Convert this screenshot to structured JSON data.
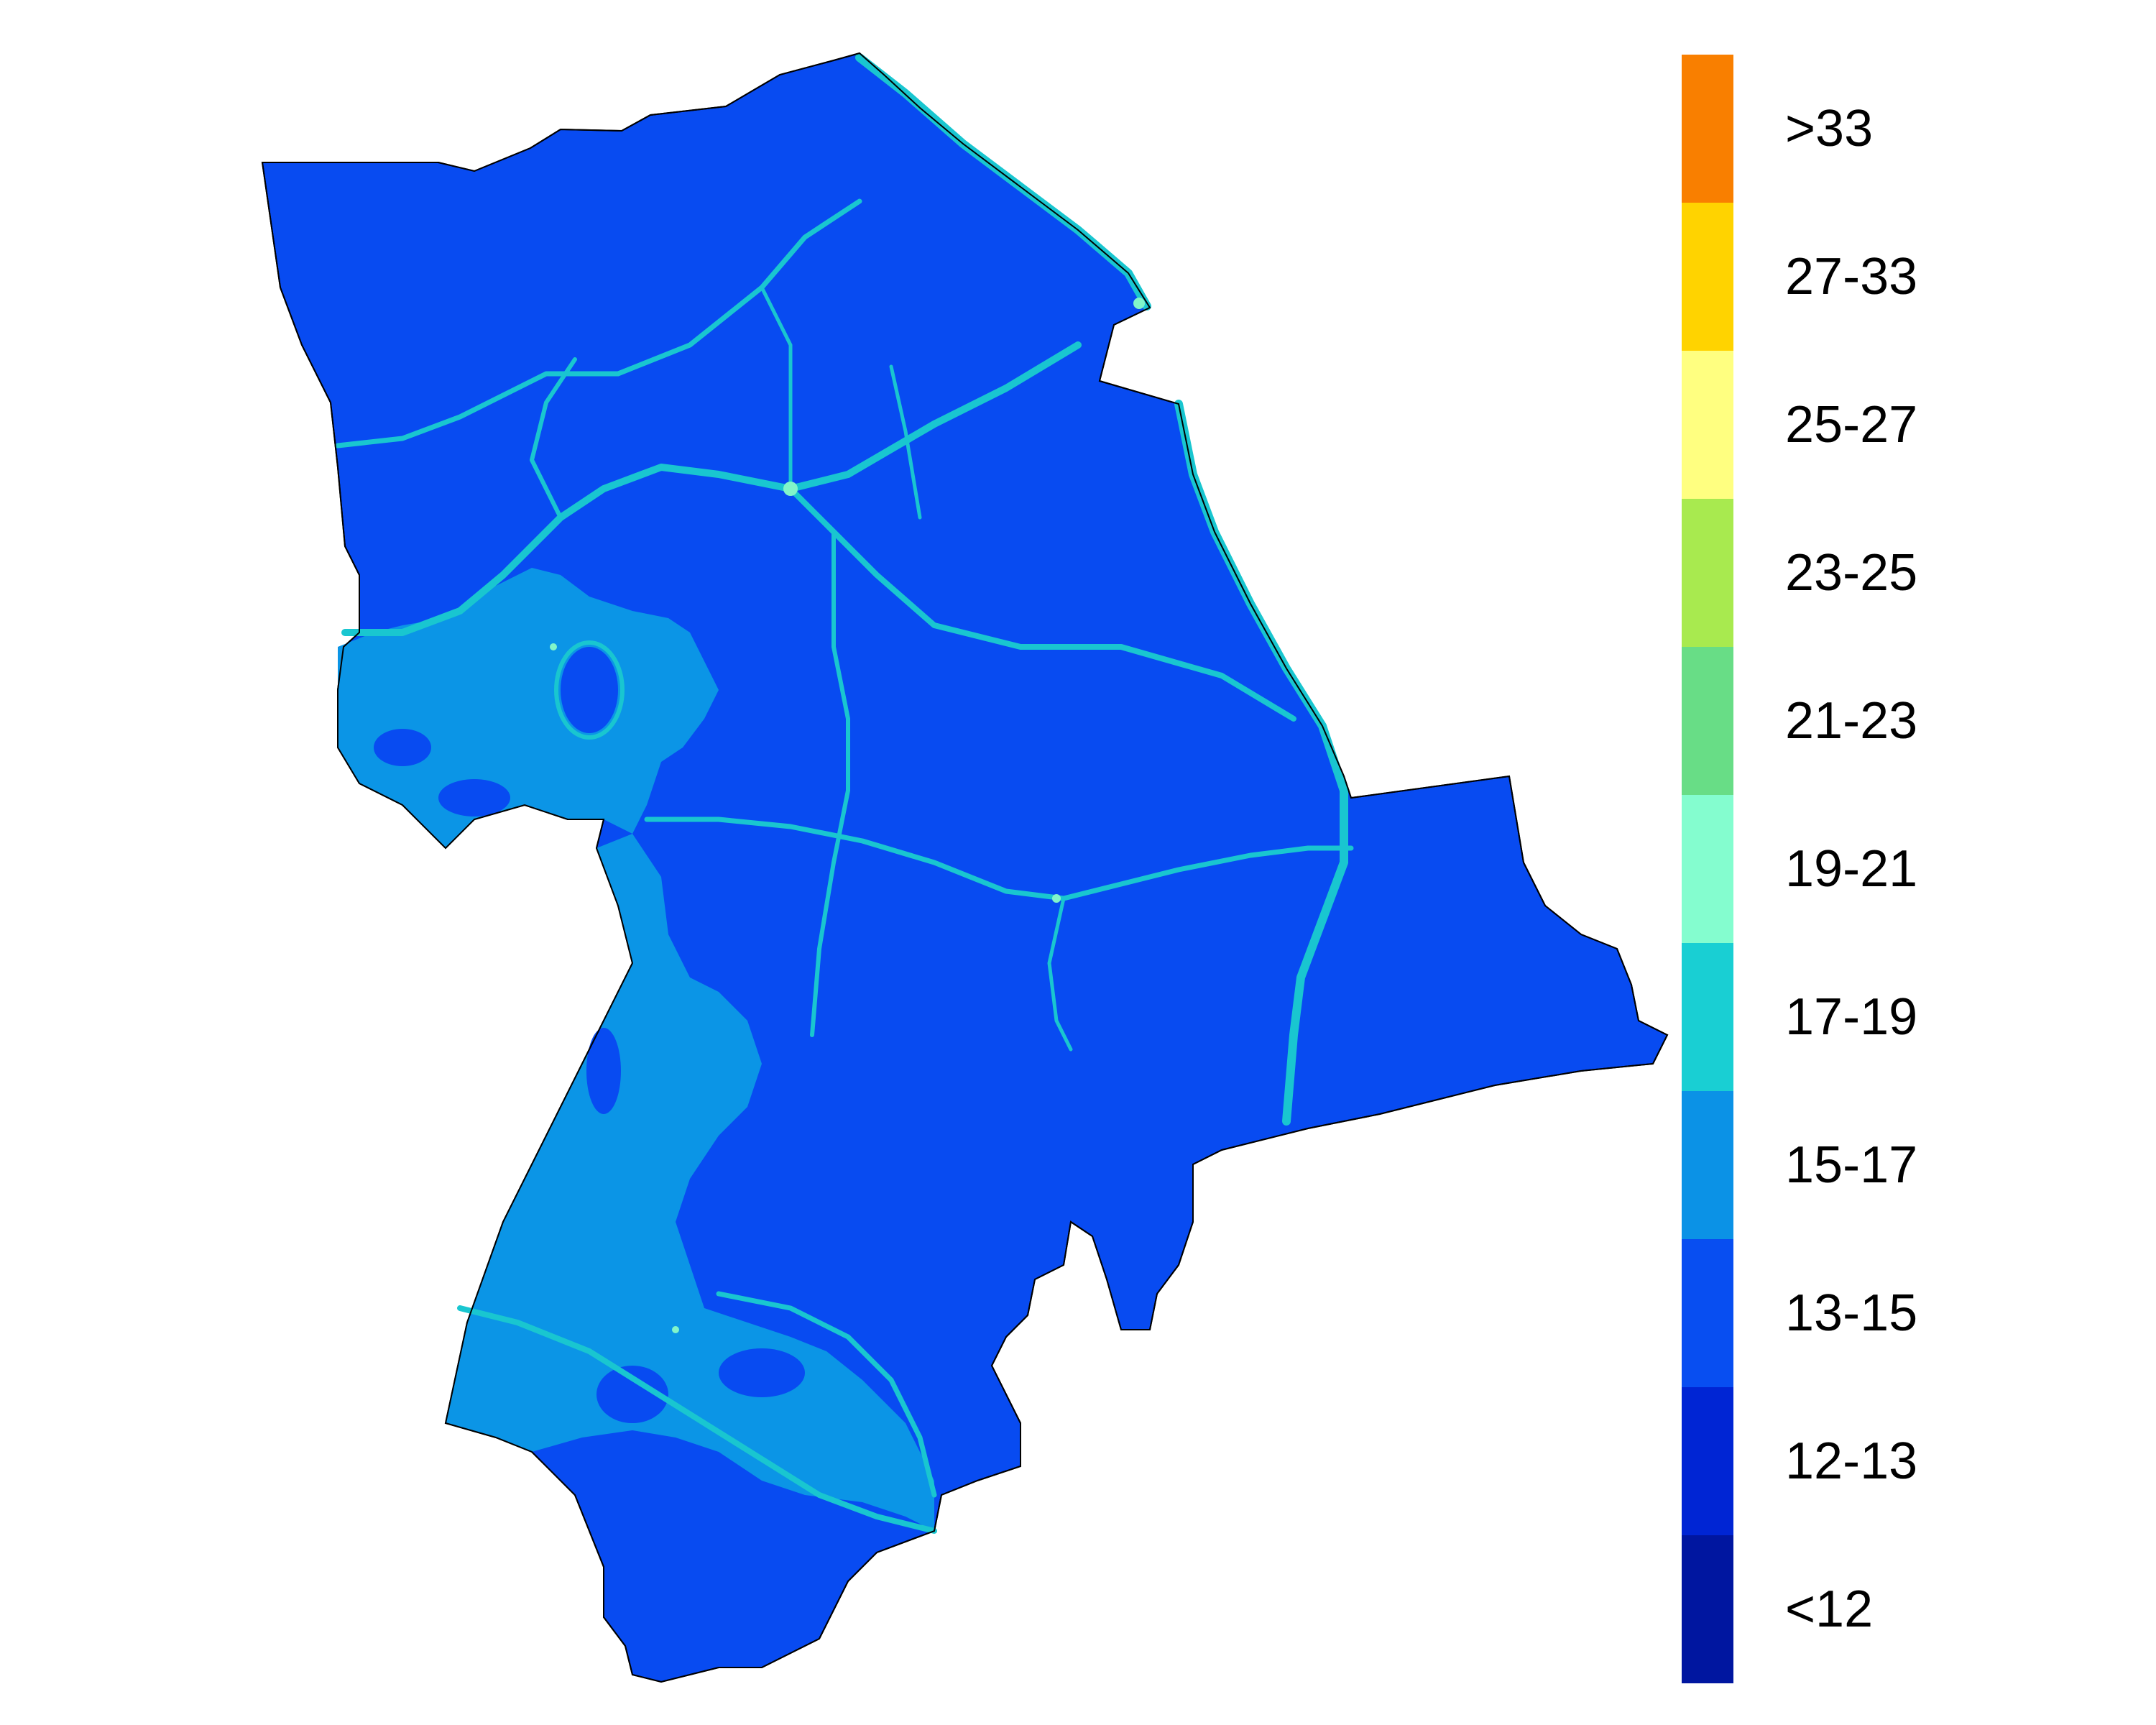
{
  "map": {
    "fill_colors": {
      "outline": "#000000",
      "base": "#084bf1",
      "secondary": "#0b95e6",
      "roads": "#19c6d0",
      "hot_points": "#81f5c9"
    }
  },
  "legend": {
    "items": [
      {
        "label": ">33",
        "color": "#f97f00"
      },
      {
        "label": "27-33",
        "color": "#ffd300"
      },
      {
        "label": "25-27",
        "color": "#ffff80"
      },
      {
        "label": "23-25",
        "color": "#a8ea4f"
      },
      {
        "label": "21-23",
        "color": "#68dd86"
      },
      {
        "label": "19-21",
        "color": "#84fdcf"
      },
      {
        "label": "17-19",
        "color": "#19cfd3"
      },
      {
        "label": "15-17",
        "color": "#0b92e6"
      },
      {
        "label": "13-15",
        "color": "#084ef1"
      },
      {
        "label": "12-13",
        "color": "#0025d4"
      },
      {
        "label": "<12",
        "color": "#0016a0"
      }
    ]
  }
}
